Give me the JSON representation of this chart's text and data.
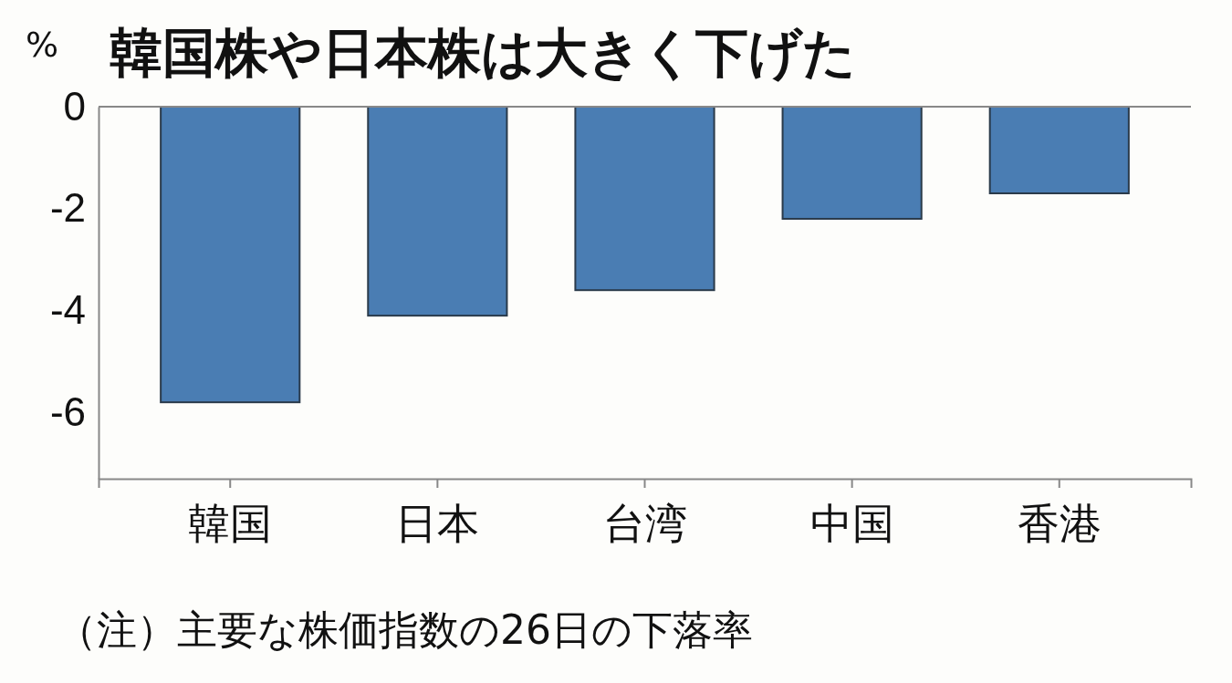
{
  "chart_data": {
    "type": "bar",
    "title": "韓国株や日本株は大きく下げた",
    "ylabel": "%",
    "categories": [
      "韓国",
      "日本",
      "台湾",
      "中国",
      "香港"
    ],
    "values": [
      -5.8,
      -4.1,
      -3.6,
      -2.2,
      -1.7
    ],
    "color": "#4a7db3",
    "ylim": [
      -7.3,
      0
    ],
    "yticks": [
      0,
      -2,
      -4,
      -6
    ],
    "annotations": [
      "（注）主要な株価指数の26日の下落率"
    ]
  }
}
